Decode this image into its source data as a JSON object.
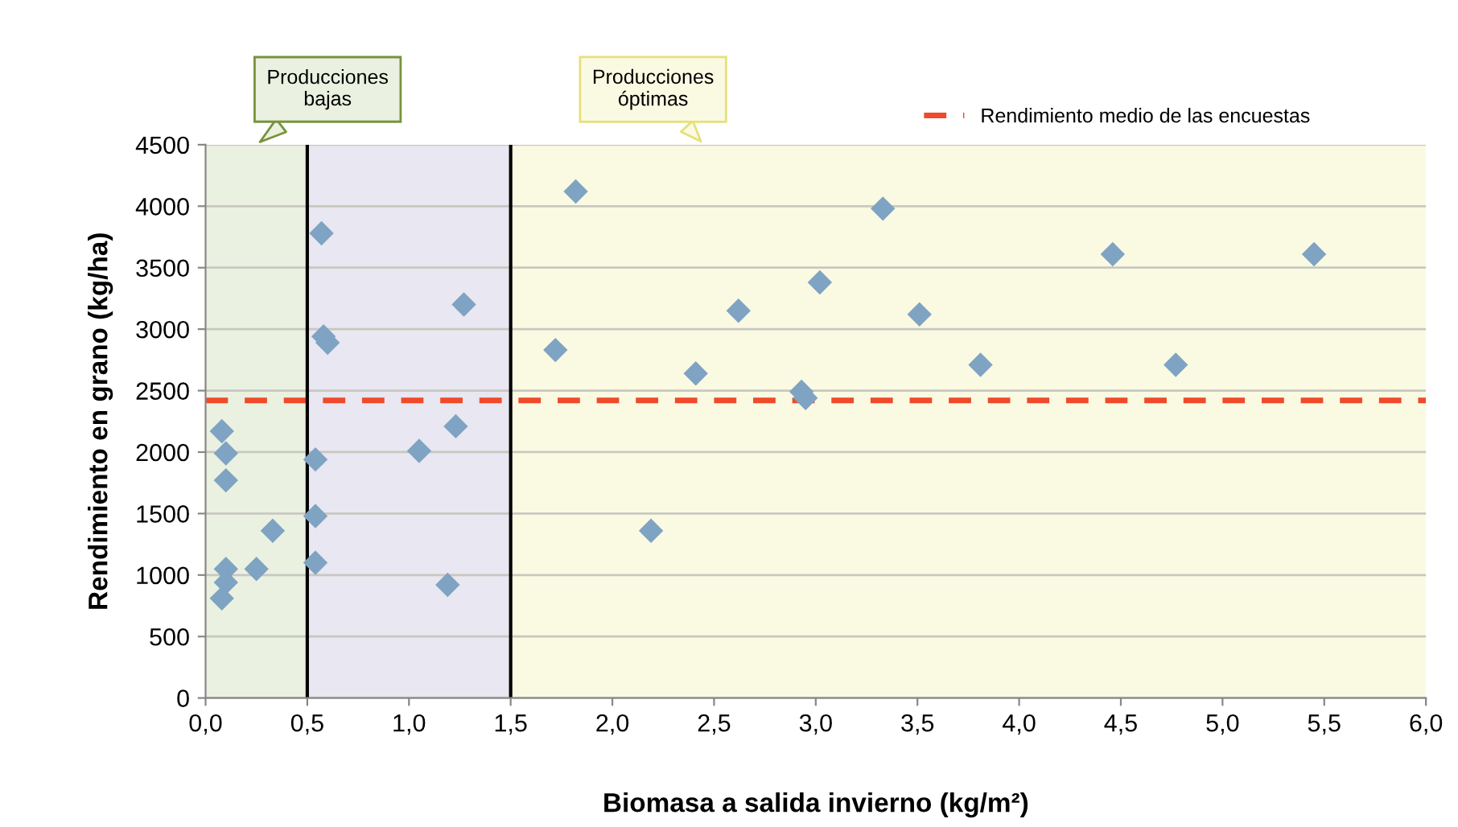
{
  "chart_data": {
    "type": "scatter",
    "xlabel": "Biomasa a salida invierno (kg/m²)",
    "ylabel": "Rendimiento en grano (kg/ha)",
    "x": [
      0.08,
      0.1,
      0.1,
      0.33,
      0.1,
      0.25,
      0.1,
      0.08,
      0.57,
      0.58,
      0.6,
      1.27,
      1.23,
      1.05,
      0.54,
      0.54,
      0.54,
      1.19,
      1.82,
      1.72,
      2.41,
      2.19,
      2.62,
      3.02,
      3.33,
      3.51,
      2.93,
      2.95,
      3.81,
      4.46,
      5.45,
      4.77
    ],
    "series": [
      {
        "color": "#7fa3c2",
        "values": [
          2170,
          1990,
          1770,
          1360,
          1050,
          1050,
          940,
          810,
          3780,
          2940,
          2890,
          3200,
          2210,
          2010,
          1940,
          1480,
          1100,
          920,
          4120,
          2830,
          2640,
          1360,
          3150,
          3380,
          3980,
          3120,
          2490,
          2440,
          2710,
          3610,
          3610,
          2710
        ]
      }
    ],
    "marker": "diamond",
    "xlim": [
      0,
      6
    ],
    "xticks": [
      {
        "value": 0,
        "label": "0,0"
      },
      {
        "value": 0.5,
        "label": "0,5"
      },
      {
        "value": 1,
        "label": "1,0"
      },
      {
        "value": 1.5,
        "label": "1,5"
      },
      {
        "value": 2,
        "label": "2,0"
      },
      {
        "value": 2.5,
        "label": "2,5"
      },
      {
        "value": 3,
        "label": "3,0"
      },
      {
        "value": 3.5,
        "label": "3,5"
      },
      {
        "value": 4,
        "label": "4,0"
      },
      {
        "value": 4.5,
        "label": "4,5"
      },
      {
        "value": 5,
        "label": "5,0"
      },
      {
        "value": 5.5,
        "label": "5,5"
      },
      {
        "value": 6,
        "label": "6,0"
      }
    ],
    "ylim": [
      0,
      4500
    ],
    "yticks": [
      0,
      500,
      1000,
      1500,
      2000,
      2500,
      3000,
      3500,
      4000,
      4500
    ],
    "grid": "y",
    "ref_lines": [
      {
        "axis": "y",
        "value": 2420,
        "label": "Rendimiento medio de las encuestas",
        "color": "#f04a2a",
        "line_style": "dashed"
      },
      {
        "axis": "x",
        "value": 0.5,
        "label": null,
        "color": "#000000",
        "line_style": "solid"
      },
      {
        "axis": "x",
        "value": 1.5,
        "label": null,
        "color": "#000000",
        "line_style": "solid"
      }
    ],
    "bands": [
      {
        "axis": "x",
        "from": 0,
        "to": 0.5,
        "label": "Producciones\nbajas",
        "color": "#ebf1e1"
      },
      {
        "axis": "x",
        "from": 0.5,
        "to": 1.5,
        "label": null,
        "color": "#e9e7f1"
      },
      {
        "axis": "x",
        "from": 1.5,
        "to": 6,
        "label": "Producciones\nóptimas",
        "color": "#fafae3"
      }
    ],
    "legend": "top right"
  }
}
